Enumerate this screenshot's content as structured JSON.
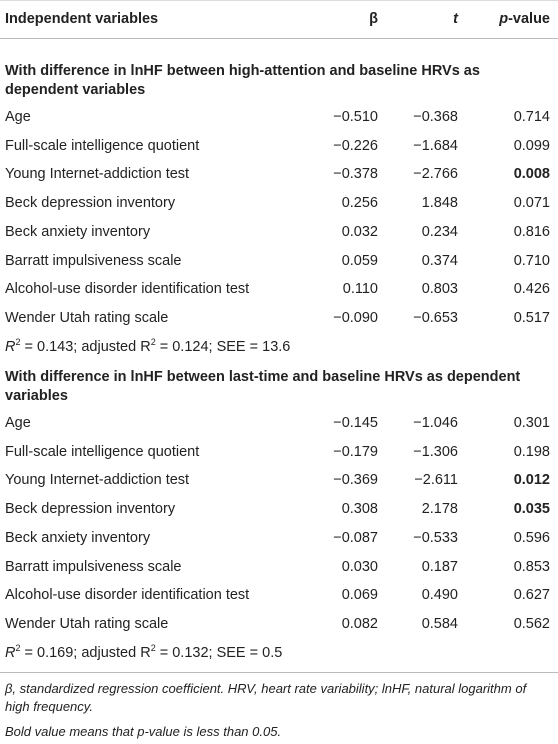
{
  "table": {
    "header": {
      "variable": "Independent variables",
      "beta": "β",
      "t": "t",
      "p": [
        "p",
        "-value"
      ]
    },
    "sections": [
      {
        "title": "With difference in lnHF between high-attention and baseline HRVs as dependent variables",
        "rows": [
          {
            "variable": "Age",
            "beta": "−0.510",
            "t": "−0.368",
            "p": "0.714"
          },
          {
            "variable": "Full-scale intelligence quotient",
            "beta": "−0.226",
            "t": "−1.684",
            "p": "0.099"
          },
          {
            "variable": "Young Internet-addiction test",
            "beta": "−0.378",
            "t": "−2.766",
            "p": "0.008",
            "bold": true
          },
          {
            "variable": "Beck depression inventory",
            "beta": "0.256",
            "t": "1.848",
            "p": "0.071"
          },
          {
            "variable": "Beck anxiety inventory",
            "beta": "0.032",
            "t": "0.234",
            "p": "0.816"
          },
          {
            "variable": "Barratt impulsiveness scale",
            "beta": "0.059",
            "t": "0.374",
            "p": "0.710"
          },
          {
            "variable": "Alcohol-use disorder identification test",
            "beta": "0.110",
            "t": "0.803",
            "p": "0.426"
          },
          {
            "variable": "Wender Utah rating scale",
            "beta": "−0.090",
            "t": "−0.653",
            "p": "0.517"
          }
        ],
        "summary": [
          "R",
          "2",
          " = 0.143; adjusted R",
          "2",
          " = 0.124; SEE = 13.6"
        ]
      },
      {
        "title": "With difference in lnHF between last-time and baseline HRVs as dependent variables",
        "rows": [
          {
            "variable": "Age",
            "beta": "−0.145",
            "t": "−1.046",
            "p": "0.301"
          },
          {
            "variable": "Full-scale intelligence quotient",
            "beta": "−0.179",
            "t": "−1.306",
            "p": "0.198"
          },
          {
            "variable": "Young Internet-addiction test",
            "beta": "−0.369",
            "t": "−2.611",
            "p": "0.012",
            "bold": true
          },
          {
            "variable": "Beck depression inventory",
            "beta": "0.308",
            "t": "2.178",
            "p": "0.035",
            "bold": true
          },
          {
            "variable": "Beck anxiety inventory",
            "beta": "−0.087",
            "t": "−0.533",
            "p": "0.596"
          },
          {
            "variable": "Barratt impulsiveness scale",
            "beta": "0.030",
            "t": "0.187",
            "p": "0.853"
          },
          {
            "variable": "Alcohol-use disorder identification test",
            "beta": "0.069",
            "t": "0.490",
            "p": "0.627"
          },
          {
            "variable": "Wender Utah rating scale",
            "beta": "0.082",
            "t": "0.584",
            "p": "0.562"
          }
        ],
        "summary": [
          "R",
          "2",
          " = 0.169; adjusted R",
          "2",
          " = 0.132; SEE = 0.5"
        ]
      }
    ],
    "footnotes": [
      "β, standardized regression coefficient. HRV, heart rate variability; lnHF, natural logarithm of high frequency.",
      "Bold value means that p-value is less than 0.05."
    ]
  }
}
